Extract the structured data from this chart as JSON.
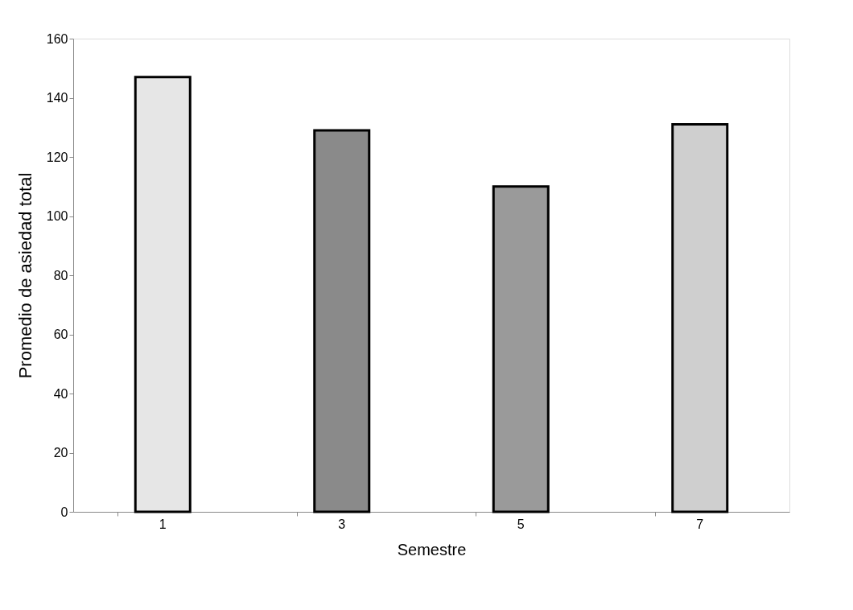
{
  "chart_data": {
    "type": "bar",
    "xlabel": "Semestre",
    "ylabel": "Promedio de asiedad  total",
    "categories": [
      "1",
      "3",
      "5",
      "7"
    ],
    "values": [
      147,
      129,
      110,
      131
    ],
    "colors": [
      "#e6e6e6",
      "#8a8a8a",
      "#9a9a9a",
      "#cfcfcf"
    ],
    "ylim": [
      0,
      160
    ],
    "yticks": [
      0,
      20,
      40,
      60,
      80,
      100,
      120,
      140,
      160
    ],
    "grid": false
  }
}
